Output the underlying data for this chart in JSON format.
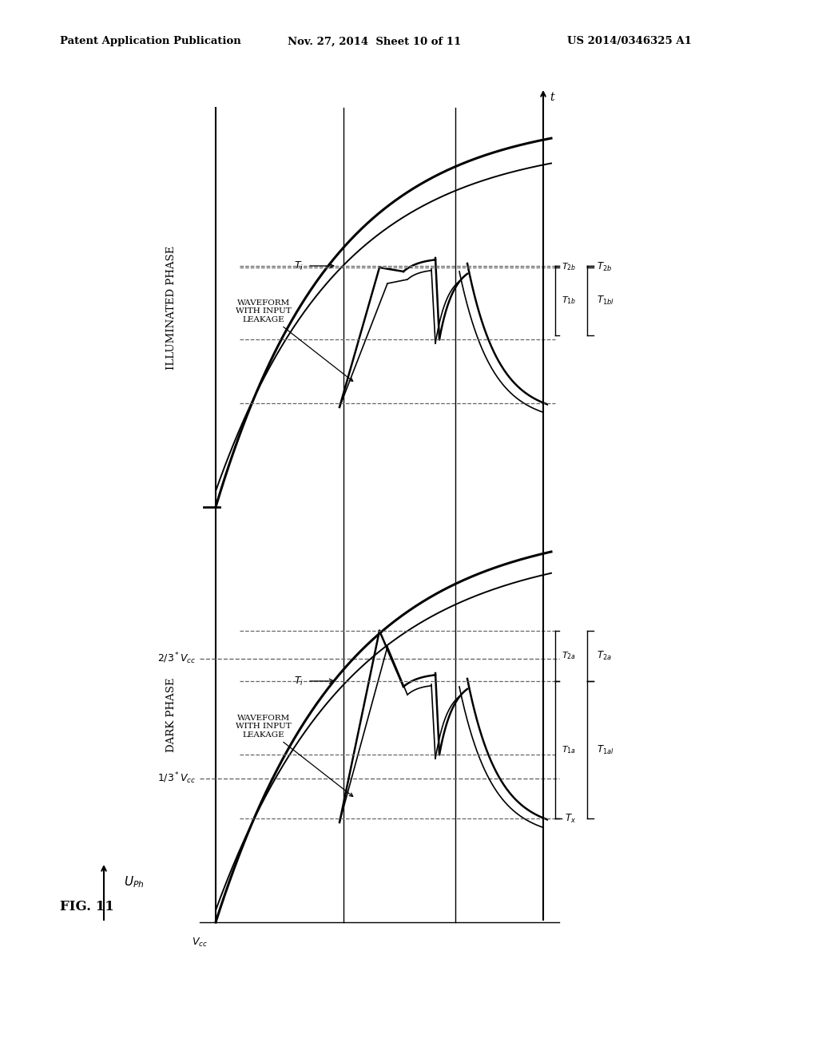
{
  "header_left": "Patent Application Publication",
  "header_mid": "Nov. 27, 2014  Sheet 10 of 11",
  "header_right": "US 2014/0346325 A1",
  "fig_label": "FIG. 11",
  "bg_color": "#ffffff",
  "lc": "#000000",
  "dc": "#666666",
  "x_axis_label": "t",
  "y_axis_label": "U_Ph",
  "vcc_label": "V_cc",
  "vcc23_label": "2/3 * V_cc",
  "vcc13_label": "1/3 * V_cc",
  "dark_label": "DARK PHASE",
  "illum_label": "ILLUMINATED PHASE",
  "wave_label": "WAVEFORM\nWITH INPUT\nLEAKAGE",
  "Ti_label": "T_i",
  "Tx_label": "T_x",
  "T1a_label": "T_{1a}",
  "T1al_label": "T_{1al}",
  "T2a_label": "T_{2a}",
  "T1b_label": "T_{1b}",
  "T1bl_label": "T_{1bl}",
  "T2b_label": "T_{2b}",
  "T2b2_label": "T_{2b}"
}
